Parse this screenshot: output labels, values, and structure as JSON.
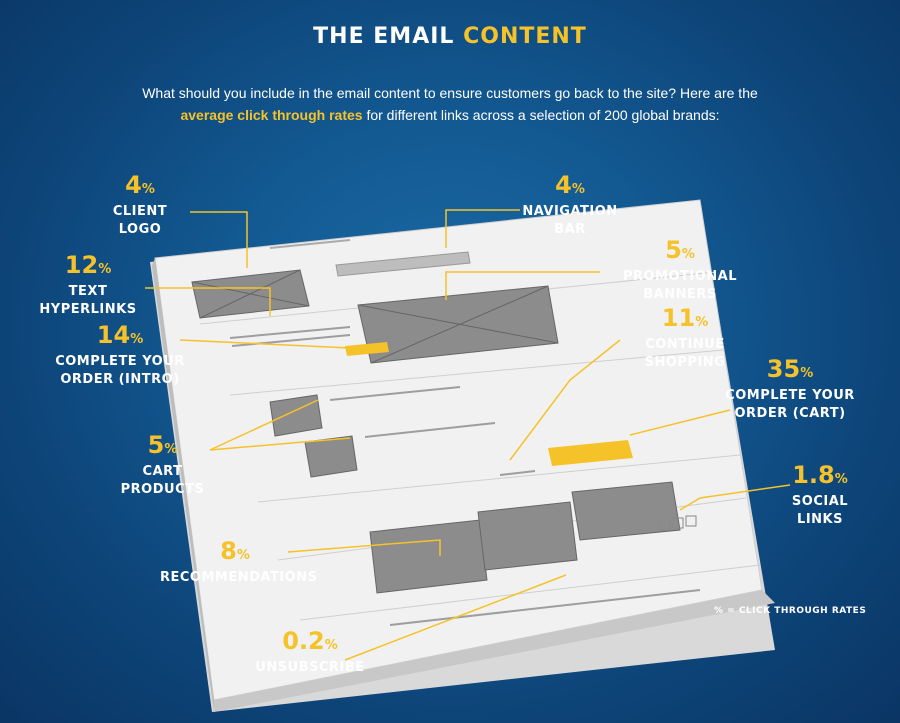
{
  "title": {
    "main": "THE EMAIL ",
    "accent": "CONTENT"
  },
  "intro": {
    "before": "What should you include in the email content to ensure customers go back to the site?  Here are the ",
    "highlight": "average click through rates",
    "after": " for different links across a selection of 200 global brands:"
  },
  "labels": {
    "client_logo": {
      "pct": "4",
      "unit": "%",
      "name": "CLIENT LOGO"
    },
    "navigation_bar": {
      "pct": "4",
      "unit": "%",
      "name": "NAVIGATION BAR"
    },
    "text_hyperlinks": {
      "pct": "12",
      "unit": "%",
      "name": "TEXT HYPERLINKS"
    },
    "promotional_banners": {
      "pct": "5",
      "unit": "%",
      "name": "PROMOTIONAL BANNERS"
    },
    "complete_order_intro": {
      "pct": "14",
      "unit": "%",
      "name1": "COMPLETE YOUR",
      "name2": "ORDER (INTRO)"
    },
    "continue_shopping": {
      "pct": "11",
      "unit": "%",
      "name": "CONTINUE SHOPPING"
    },
    "complete_order_cart": {
      "pct": "35",
      "unit": "%",
      "name1": "COMPLETE YOUR",
      "name2": "ORDER (CART)"
    },
    "cart_products": {
      "pct": "5",
      "unit": "%",
      "name": "CART PRODUCTS"
    },
    "social_links": {
      "pct": "1.8",
      "unit": "%",
      "name": "SOCIAL LINKS"
    },
    "recommendations": {
      "pct": "8",
      "unit": "%",
      "name": "RECOMMENDATIONS"
    },
    "unsubscribe": {
      "pct": "0.2",
      "unit": "%",
      "name": "UNSUBSCRIBE"
    }
  },
  "note": "% = CLICK THROUGH RATES",
  "colors": {
    "accent": "#f6c22a",
    "background": "#135a93"
  }
}
